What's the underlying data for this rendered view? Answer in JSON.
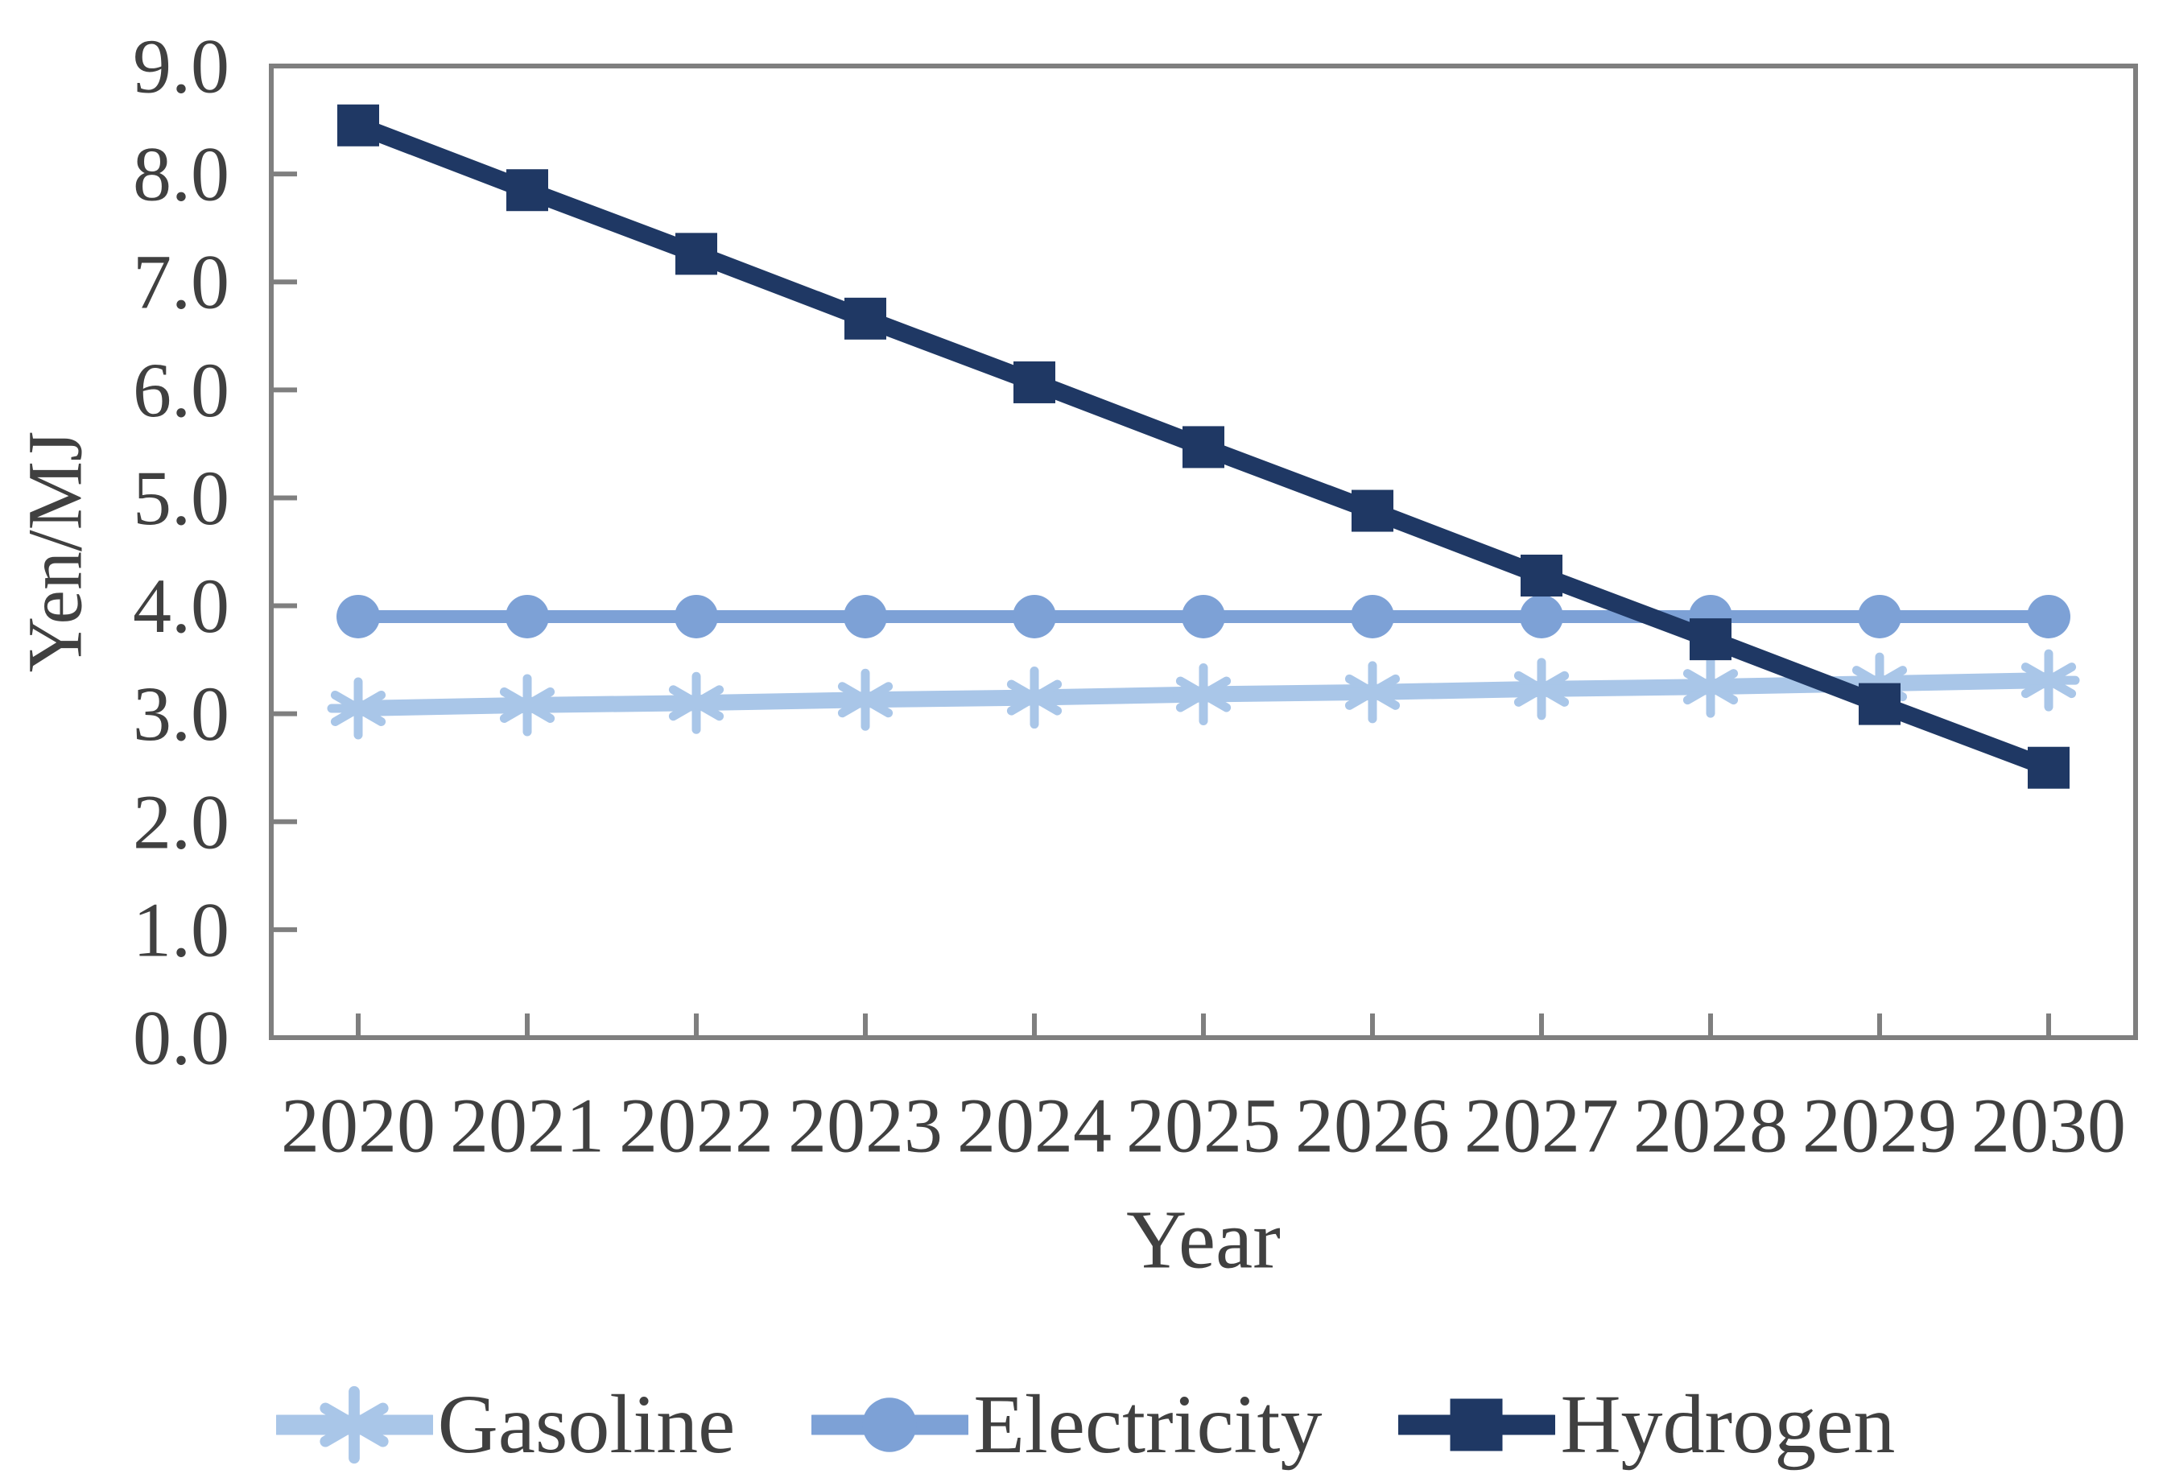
{
  "chart_data": {
    "type": "line",
    "title": "",
    "xlabel": "Year",
    "ylabel": "Yen/MJ",
    "x": [
      "2020",
      "2021",
      "2022",
      "2023",
      "2024",
      "2025",
      "2026",
      "2027",
      "2028",
      "2029",
      "2030"
    ],
    "series": [
      {
        "name": "Gasoline",
        "marker": "asterisk",
        "color": "#A9C6E8",
        "line_width": 20,
        "values": [
          3.05,
          3.08,
          3.1,
          3.13,
          3.15,
          3.18,
          3.2,
          3.23,
          3.25,
          3.28,
          3.31
        ]
      },
      {
        "name": "Electricity",
        "marker": "circle",
        "color": "#7DA1D6",
        "line_width": 16,
        "values": [
          3.9,
          3.9,
          3.9,
          3.9,
          3.9,
          3.9,
          3.9,
          3.9,
          3.9,
          3.9,
          3.9
        ]
      },
      {
        "name": "Hydrogen",
        "marker": "square",
        "color": "#1F3864",
        "line_width": 22,
        "values": [
          8.45,
          7.85,
          7.26,
          6.66,
          6.07,
          5.47,
          4.88,
          4.28,
          3.69,
          3.09,
          2.5
        ]
      }
    ],
    "ylim": [
      0,
      9
    ],
    "ytick_step": 1.0,
    "ytick_labels": [
      "0.0",
      "1.0",
      "2.0",
      "3.0",
      "4.0",
      "5.0",
      "6.0",
      "7.0",
      "8.0",
      "9.0"
    ],
    "grid": false,
    "legend_position": "bottom"
  },
  "colors": {
    "axis": "#7F7F7F",
    "text": "#404040",
    "background": "#FFFFFF"
  }
}
